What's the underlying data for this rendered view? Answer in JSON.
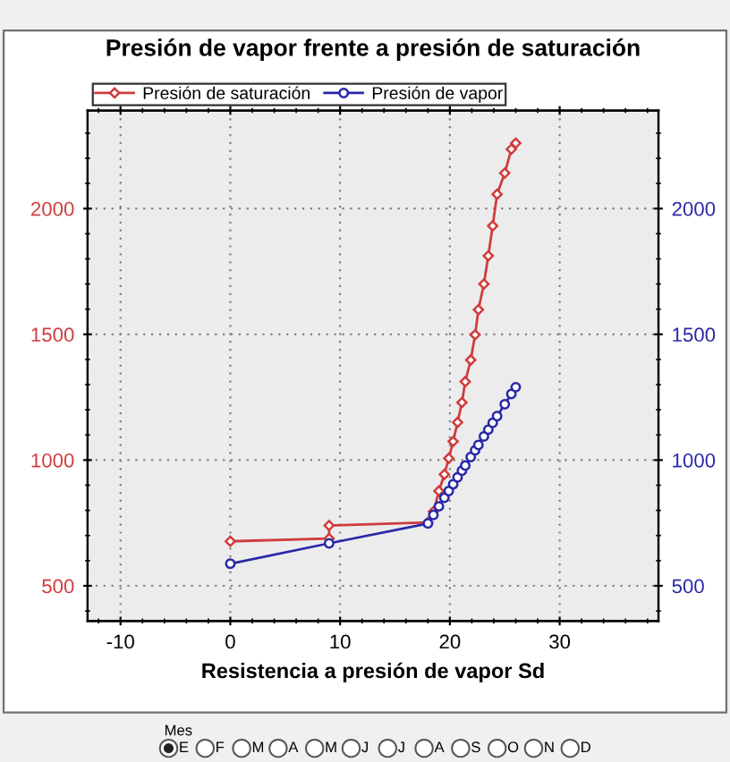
{
  "chart_data": {
    "type": "line",
    "title": "Presión de vapor frente a presión de saturación",
    "xlabel": "Resistencia a presión de vapor Sd",
    "xlim": [
      -13,
      39
    ],
    "xticks": [
      -10,
      0,
      10,
      20,
      30
    ],
    "ylim": [
      360,
      2390
    ],
    "yticks": [
      500,
      1000,
      1500,
      2000
    ],
    "y2lim": [
      360,
      2390
    ],
    "y2ticks": [
      500,
      1000,
      1500,
      2000
    ],
    "grid": true,
    "legend": "top left",
    "line_style": "solid",
    "series": [
      {
        "name": "Presión de saturación",
        "color": "#d03c3c",
        "marker": "diamond",
        "x": [
          0,
          9,
          9,
          18,
          18.5,
          19,
          19.5,
          19.9,
          20.3,
          20.7,
          21.1,
          21.4,
          21.9,
          22.3,
          22.6,
          23.1,
          23.5,
          23.9,
          24.3,
          25,
          25.6,
          26
        ],
        "values": [
          677,
          688,
          740,
          752,
          795,
          877,
          943,
          1007,
          1074,
          1150,
          1229,
          1312,
          1398,
          1498,
          1598,
          1700,
          1812,
          1931,
          2057,
          2141,
          2236,
          2260
        ]
      },
      {
        "name": "Presión de vapor",
        "color": "#2828a8",
        "marker": "circle",
        "x": [
          0,
          9,
          18,
          18.5,
          19,
          19.5,
          19.9,
          20.3,
          20.7,
          21.1,
          21.4,
          21.9,
          22.3,
          22.6,
          23.1,
          23.5,
          23.9,
          24.3,
          25,
          25.6,
          26
        ],
        "values": [
          588,
          669,
          748,
          782,
          816,
          850,
          877,
          904,
          931,
          958,
          978,
          1012,
          1039,
          1060,
          1094,
          1121,
          1148,
          1175,
          1222,
          1263,
          1290
        ]
      }
    ],
    "annotations": [
      "Mes",
      "E",
      "F",
      "M",
      "A",
      "M",
      "J",
      "J",
      "A",
      "S",
      "O",
      "N",
      "D"
    ]
  }
}
